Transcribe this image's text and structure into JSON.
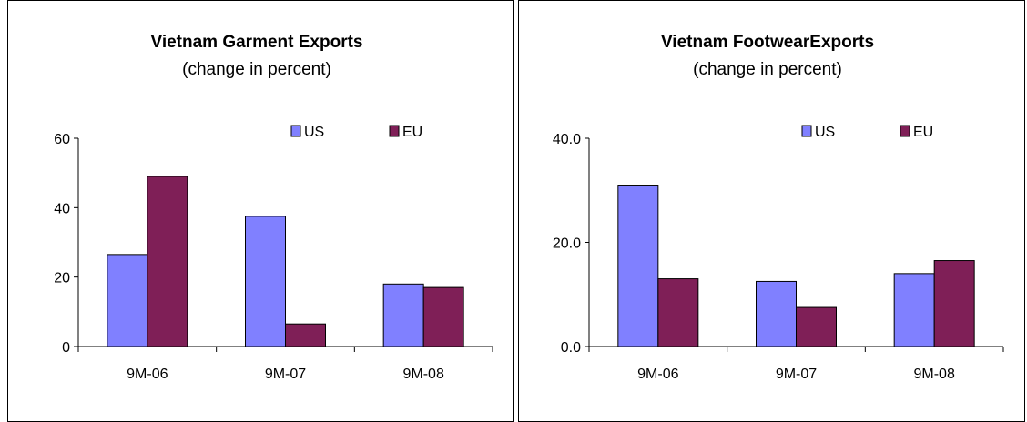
{
  "colors": {
    "us": "#8080ff",
    "eu": "#7f1f57"
  },
  "chart_data": [
    {
      "type": "bar",
      "title": "Vietnam Garment Exports",
      "subtitle": "(change in percent)",
      "categories": [
        "9M-06",
        "9M-07",
        "9M-08"
      ],
      "series": [
        {
          "name": "US",
          "values": [
            26.5,
            37.5,
            18
          ]
        },
        {
          "name": "EU",
          "values": [
            49,
            6.5,
            17
          ]
        }
      ],
      "ylim": [
        0,
        60
      ],
      "yticks": [
        0,
        20,
        40,
        60
      ],
      "ytick_labels": [
        "0",
        "20",
        "40",
        "60"
      ],
      "legend": "top-right",
      "grid": false
    },
    {
      "type": "bar",
      "title": "Vietnam FootwearExports",
      "subtitle": "(change in percent)",
      "categories": [
        "9M-06",
        "9M-07",
        "9M-08"
      ],
      "series": [
        {
          "name": "US",
          "values": [
            31,
            12.5,
            14
          ]
        },
        {
          "name": "EU",
          "values": [
            13,
            7.5,
            16.5
          ]
        }
      ],
      "ylim": [
        0,
        40
      ],
      "yticks": [
        0,
        20,
        40
      ],
      "ytick_labels": [
        "0.0",
        "20.0",
        "40.0"
      ],
      "legend": "top-right",
      "grid": false
    }
  ]
}
